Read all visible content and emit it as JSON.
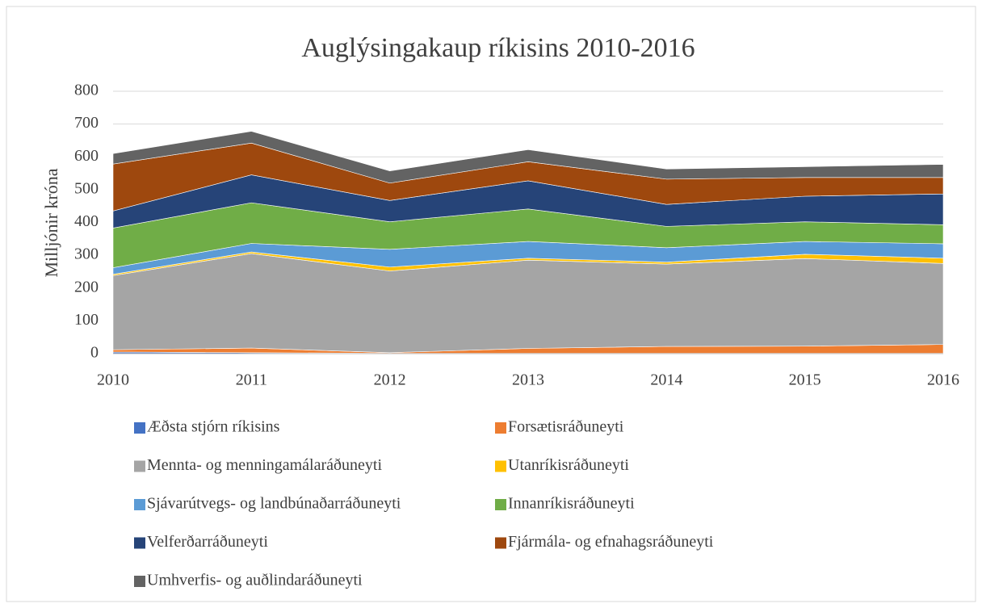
{
  "chart_data": {
    "type": "stacked-area",
    "title": "Auglýsingakaup ríkisins 2010-2016",
    "y_label": "Milljónir króna",
    "categories": [
      "2010",
      "2011",
      "2012",
      "2013",
      "2014",
      "2015",
      "2016"
    ],
    "ylim": [
      0,
      800
    ],
    "yticks": [
      0,
      100,
      200,
      300,
      400,
      500,
      600,
      700,
      800
    ],
    "grid": true,
    "legend": "bottom",
    "series": [
      {
        "name": "Æðsta stjórn ríkisins",
        "color": "#4472c4",
        "values": [
          5,
          3,
          1,
          1,
          1,
          1,
          1
        ]
      },
      {
        "name": "Forsætisráðuneyti",
        "color": "#ed7d31",
        "values": [
          7,
          14,
          2,
          15,
          21,
          22,
          27
        ]
      },
      {
        "name": "Mennta- og menningamálaráðuneyti",
        "color": "#a5a5a5",
        "values": [
          226,
          288,
          249,
          269,
          251,
          267,
          247
        ]
      },
      {
        "name": "Utanríkisráðuneyti",
        "color": "#ffc000",
        "values": [
          4,
          5,
          12,
          6,
          6,
          13,
          16
        ]
      },
      {
        "name": "Sjávarútvegs- og landbúnaðarráðuneyti",
        "color": "#5b9bd5",
        "values": [
          20,
          26,
          54,
          51,
          44,
          39,
          44
        ]
      },
      {
        "name": "Innanríkisráðuneyti",
        "color": "#70ad47",
        "values": [
          121,
          124,
          84,
          99,
          65,
          60,
          58
        ]
      },
      {
        "name": "Velferðarráðuneyti",
        "color": "#264478",
        "values": [
          52,
          85,
          65,
          86,
          67,
          78,
          94
        ]
      },
      {
        "name": "Fjármála- og efnahagsráðuneyti",
        "color": "#9e480e",
        "values": [
          143,
          97,
          53,
          58,
          77,
          57,
          50
        ]
      },
      {
        "name": "Umhverfis- og auðlindaráðuneyti",
        "color": "#636363",
        "values": [
          32,
          36,
          37,
          37,
          31,
          33,
          40
        ]
      }
    ]
  }
}
